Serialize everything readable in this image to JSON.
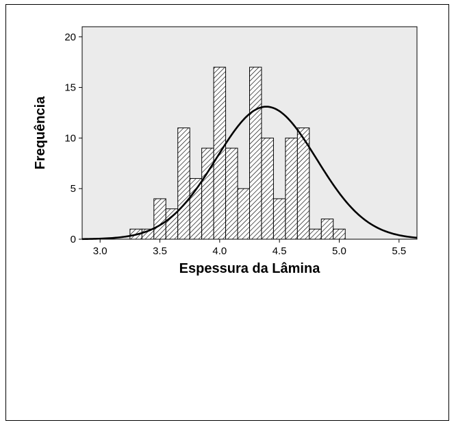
{
  "chart_data": {
    "type": "bar",
    "subtype": "histogram",
    "xlabel": "Espessura da Lâmina",
    "ylabel": "Frequência",
    "xlim": [
      2.85,
      5.65
    ],
    "ylim": [
      0,
      21
    ],
    "x_ticks": [
      "3.0",
      "3.5",
      "4.0",
      "4.5",
      "5.0",
      "5.5"
    ],
    "y_ticks": [
      "0",
      "5",
      "10",
      "15",
      "20"
    ],
    "bin_width": 0.1,
    "bins": [
      {
        "start": 3.25,
        "end": 3.35,
        "count": 1
      },
      {
        "start": 3.35,
        "end": 3.45,
        "count": 1
      },
      {
        "start": 3.45,
        "end": 3.55,
        "count": 4
      },
      {
        "start": 3.55,
        "end": 3.65,
        "count": 3
      },
      {
        "start": 3.65,
        "end": 3.75,
        "count": 11
      },
      {
        "start": 3.75,
        "end": 3.85,
        "count": 6
      },
      {
        "start": 3.85,
        "end": 3.95,
        "count": 9
      },
      {
        "start": 3.95,
        "end": 4.05,
        "count": 17
      },
      {
        "start": 4.05,
        "end": 4.15,
        "count": 9
      },
      {
        "start": 4.15,
        "end": 4.25,
        "count": 5
      },
      {
        "start": 4.25,
        "end": 4.35,
        "count": 17
      },
      {
        "start": 4.35,
        "end": 4.45,
        "count": 10
      },
      {
        "start": 4.45,
        "end": 4.55,
        "count": 4
      },
      {
        "start": 4.55,
        "end": 4.65,
        "count": 10
      },
      {
        "start": 4.65,
        "end": 4.75,
        "count": 11
      },
      {
        "start": 4.75,
        "end": 4.85,
        "count": 1
      },
      {
        "start": 4.85,
        "end": 4.95,
        "count": 2
      },
      {
        "start": 4.95,
        "end": 5.05,
        "count": 1
      }
    ],
    "normal_curve": {
      "mean": 4.39,
      "peak": 13.1,
      "sd": 0.42
    },
    "grid": false,
    "plot_background": "#ebebeb",
    "bar_fill": "hatched"
  }
}
